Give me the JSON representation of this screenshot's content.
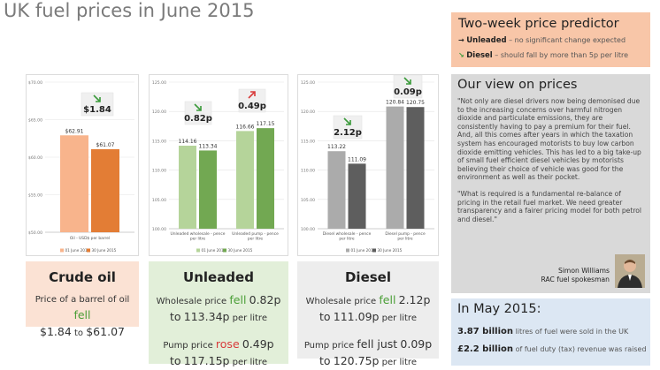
{
  "title": "UK fuel prices in June 2015",
  "chart_data": [
    {
      "type": "bar",
      "id": "crude",
      "categories": [
        "Oil - USD$ per barrel"
      ],
      "series": [
        {
          "name": "01 June 2015",
          "values": [
            62.91
          ],
          "color": "#f8b48c"
        },
        {
          "name": "30 June 2015",
          "values": [
            61.07
          ],
          "color": "#e37d35"
        }
      ],
      "value_labels": [
        "$62.91",
        "$61.07"
      ],
      "ylim": [
        50,
        70
      ],
      "yticks": [
        50,
        55,
        60,
        65,
        70
      ],
      "ytick_labels": [
        "$50.00",
        "$55.00",
        "$60.00",
        "$65.00",
        "$70.00"
      ],
      "legend": [
        "01 June 2015",
        "30 June 2015"
      ],
      "callout": {
        "arrow": "down",
        "text": "$1.84"
      }
    },
    {
      "type": "bar",
      "id": "unleaded",
      "categories": [
        "Unleaded wholesale - pence per litre",
        "Unleaded pump - pence per litre"
      ],
      "series": [
        {
          "name": "01 June 2015",
          "values": [
            114.16,
            116.66
          ],
          "color": "#b5d49a"
        },
        {
          "name": "30 June 2015",
          "values": [
            113.34,
            117.15
          ],
          "color": "#72a852"
        }
      ],
      "value_labels": [
        [
          "114.16",
          "116.66"
        ],
        [
          "113.34",
          "117.15"
        ]
      ],
      "ylim": [
        100,
        125
      ],
      "yticks": [
        100,
        105,
        110,
        115,
        120,
        125
      ],
      "ytick_labels": [
        "100.00",
        "105.00",
        "110.00",
        "115.00",
        "120.00",
        "125.00"
      ],
      "legend": [
        "01 June 2015",
        "30 June 2015"
      ],
      "callouts": [
        {
          "arrow": "down",
          "text": "0.82p"
        },
        {
          "arrow": "up",
          "text": "0.49p"
        }
      ]
    },
    {
      "type": "bar",
      "id": "diesel",
      "categories": [
        "Diesel wholesale - pence per litre",
        "Diesel pump - pence per litre"
      ],
      "series": [
        {
          "name": "01 June 2015",
          "values": [
            113.22,
            120.84
          ],
          "color": "#ababab"
        },
        {
          "name": "30 June 2015",
          "values": [
            111.09,
            120.75
          ],
          "color": "#5e5e5e"
        }
      ],
      "value_labels": [
        [
          "113.22",
          "120.84"
        ],
        [
          "111.09",
          "120.75"
        ]
      ],
      "ylim": [
        100,
        125
      ],
      "yticks": [
        100,
        105,
        110,
        115,
        120,
        125
      ],
      "ytick_labels": [
        "100.00",
        "105.00",
        "110.00",
        "115.00",
        "120.00",
        "125.00"
      ],
      "legend": [
        "01 June 2015",
        "30 June 2015"
      ],
      "callouts": [
        {
          "arrow": "down",
          "text": "2.12p"
        },
        {
          "arrow": "down",
          "text": "0.09p"
        }
      ]
    }
  ],
  "panels": {
    "crude": {
      "title": "Crude oil",
      "line1_pre": "Price of a barrel of oil",
      "line1_hl": "fell",
      "line2_a": "$1.84",
      "line2_to": "to",
      "line2_b": "$61.07",
      "bg": "#fbe2d4"
    },
    "unleaded": {
      "title": "Unleaded",
      "w_pre": "Wholesale price",
      "w_hl": "fell",
      "w_val": "0.82p",
      "w_to": "to",
      "w_new": "113.34p",
      "w_unit": "per litre",
      "p_pre": "Pump price",
      "p_hl": "rose",
      "p_val": "0.49p",
      "p_to": "to",
      "p_new": "117.15p",
      "p_unit": "per litre",
      "bg": "#e2efd9"
    },
    "diesel": {
      "title": "Diesel",
      "w_pre": "Wholesale price",
      "w_hl": "fell",
      "w_val": "2.12p",
      "w_to": "to",
      "w_new": "111.09p",
      "w_unit": "per litre",
      "p_pre": "Pump price",
      "p_hl": "fell just",
      "p_val": "0.09p",
      "p_to": "to",
      "p_new": "120.75p",
      "p_unit": "per litre",
      "bg": "#ededed"
    }
  },
  "predictor": {
    "title": "Two-week price predictor",
    "unleaded_label": "Unleaded",
    "unleaded_text": "– no significant change expected",
    "diesel_label": "Diesel",
    "diesel_text": "– should fall by more than 5p per litre",
    "bg": "#f8c6a8"
  },
  "view": {
    "title": "Our view on prices",
    "quote1": "\"Not only are diesel drivers now being demonised due to the increasing concerns over harmful nitrogen dioxide and particulate emissions, they are consistently having to pay a premium for their fuel. And, all this comes after years in which the taxation system has encouraged motorists to buy low carbon dioxide emitting vehicles. This has led to a big take-up of small fuel efficient diesel vehicles by motorists believing their choice of vehicle was good for the environment as well as their pocket.",
    "quote2": "\"What is required is a fundamental re-balance of pricing in the retail fuel market. We need greater transparency and a fairer pricing model for both petrol and diesel.\"",
    "author": "Simon Williams",
    "role": "RAC fuel spokesman",
    "bg": "#d9d9d9"
  },
  "may": {
    "title": "In May 2015:",
    "stat1_value": "3.87 billion",
    "stat1_text": "litres of fuel were sold in the UK",
    "stat2_value": "£2.2 billion",
    "stat2_text": "of fuel duty (tax) revenue was raised",
    "bg": "#dce7f3"
  }
}
